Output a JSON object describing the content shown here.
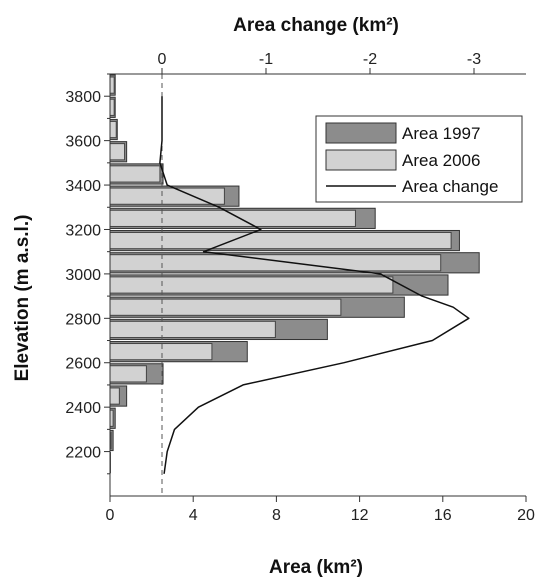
{
  "chart_data": {
    "type": "bar",
    "orientation": "horizontal",
    "title": "",
    "x_bottom": {
      "label": "Area (km²)",
      "ticks": [
        0,
        4,
        8,
        12,
        16,
        20
      ],
      "lim": [
        0,
        20
      ]
    },
    "x_top": {
      "label": "Area change (km²)",
      "ticks": [
        0,
        -1,
        -2,
        -3
      ],
      "tick_labels": [
        "0",
        "-1",
        "-2",
        "-3"
      ],
      "lim": [
        0.5,
        -3.5
      ]
    },
    "y": {
      "label": "Elevation (m a.s.l.)",
      "ticks": [
        2200,
        2400,
        2600,
        2800,
        3000,
        3200,
        3400,
        3600,
        3800
      ],
      "lim": [
        2000,
        3900
      ]
    },
    "bin_width": 100,
    "series": [
      {
        "name": "Area 1997",
        "color": "#8c8c8c",
        "bins": [
          2150,
          2250,
          2350,
          2450,
          2550,
          2650,
          2750,
          2850,
          2950,
          3050,
          3150,
          3250,
          3350,
          3450,
          3550,
          3650,
          3750,
          3850
        ],
        "values": [
          0.02,
          0.15,
          0.25,
          0.8,
          2.55,
          6.6,
          10.45,
          14.15,
          16.25,
          17.75,
          16.8,
          12.75,
          6.2,
          2.55,
          0.8,
          0.35,
          0.25,
          0.25
        ]
      },
      {
        "name": "Area 2006",
        "color": "#d2d2d2",
        "bins": [
          2150,
          2250,
          2350,
          2450,
          2550,
          2650,
          2750,
          2850,
          2950,
          3050,
          3150,
          3250,
          3350,
          3450,
          3550,
          3650,
          3750,
          3850
        ],
        "values": [
          0.0,
          0.05,
          0.15,
          0.45,
          1.75,
          4.9,
          7.95,
          11.1,
          13.6,
          15.9,
          16.4,
          11.8,
          5.5,
          2.4,
          0.7,
          0.3,
          0.2,
          0.2
        ]
      }
    ],
    "line": {
      "name": "Area change",
      "color": "#111111",
      "y": [
        2100,
        2200,
        2300,
        2400,
        2500,
        2600,
        2700,
        2800,
        2850,
        2900,
        3000,
        3100,
        3200,
        3300,
        3400,
        3500,
        3600,
        3700,
        3800
      ],
      "values": [
        -0.02,
        -0.05,
        -0.12,
        -0.35,
        -0.78,
        -1.75,
        -2.6,
        -2.95,
        -2.8,
        -2.5,
        -2.1,
        -0.4,
        -0.95,
        -0.55,
        -0.05,
        0.02,
        0.0,
        0.0,
        0.0
      ]
    },
    "reference_line": {
      "value": 0,
      "axis": "x_top",
      "style": "dashed"
    },
    "legend": {
      "position": "top-right",
      "entries": [
        "Area 1997",
        "Area 2006",
        "Area change"
      ]
    },
    "grid": false
  }
}
